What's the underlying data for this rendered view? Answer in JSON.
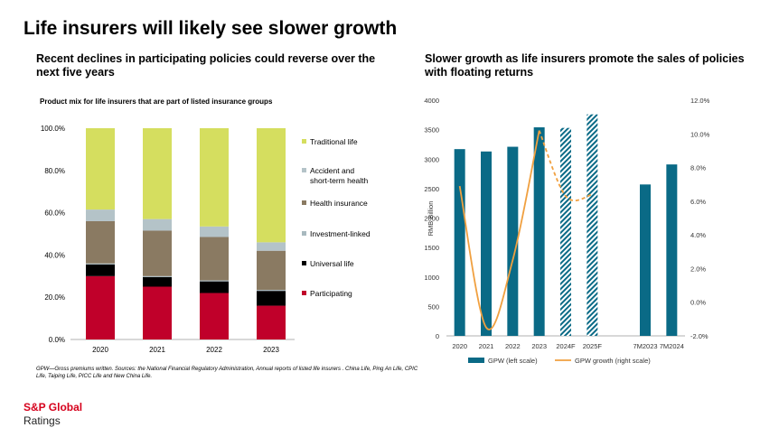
{
  "title": "Life insurers will likely see slower growth",
  "left_heading": "Recent declines in participating policies could reverse over the next five years",
  "right_heading": "Slower growth as life insurers promote the sales of policies with floating returns",
  "footnote": "GPW—Gross premiums written. Sources: the National Financial Regulatory Administration, Annual reports of listed life insurers . China Life, Ping An Life, CPIC Life, Taiping Life, PICC Life and New China Life.",
  "brand": {
    "line1": "S&P Global",
    "line2": "Ratings"
  },
  "colors": {
    "participating": "#c0002a",
    "universal": "#000000",
    "investment": "#a8b9bf",
    "health": "#8a7a62",
    "accident": "#b4c3c8",
    "traditional": "#d5de5f",
    "gpw": "#0a6a86",
    "growth": "#f0a040"
  },
  "chart_data": [
    {
      "type": "bar",
      "stacked": true,
      "title": "Product mix for life insurers that are part of listed insurance groups",
      "categories": [
        "2020",
        "2021",
        "2022",
        "2023"
      ],
      "series": [
        {
          "name": "Participating",
          "values": [
            30.0,
            25.0,
            22.0,
            16.0
          ]
        },
        {
          "name": "Universal life",
          "values": [
            5.5,
            4.5,
            5.5,
            7.0
          ]
        },
        {
          "name": "Investment-linked",
          "values": [
            0.5,
            0.5,
            0.5,
            0.5
          ]
        },
        {
          "name": "Health insurance",
          "values": [
            20.0,
            21.5,
            20.5,
            18.5
          ]
        },
        {
          "name": "Accident and short-term health",
          "values": [
            5.5,
            5.5,
            5.0,
            4.0
          ]
        },
        {
          "name": "Traditional life",
          "values": [
            38.5,
            43.0,
            46.5,
            54.0
          ]
        }
      ],
      "ylim": [
        0,
        100
      ],
      "yticks": [
        "0.0%",
        "20.0%",
        "40.0%",
        "60.0%",
        "80.0%",
        "100.0%"
      ],
      "legend_placement": "right",
      "legend_order": [
        "Traditional life",
        "Accident and short-term health",
        "Health insurance",
        "Investment-linked",
        "Universal life",
        "Participating"
      ]
    },
    {
      "type": "bar",
      "combo": "bar-line",
      "categories": [
        "2020",
        "2021",
        "2022",
        "2023",
        "2024F",
        "2025F",
        "",
        "7M2023",
        "7M2024"
      ],
      "series": [
        {
          "name": "GPW (left scale)",
          "type": "bar",
          "values": [
            3170,
            3130,
            3210,
            3540,
            3530,
            3760,
            null,
            2570,
            2910
          ],
          "forecast": [
            false,
            false,
            false,
            false,
            true,
            true,
            false,
            false,
            false
          ]
        },
        {
          "name": "GPW growth (right scale)",
          "type": "line",
          "values": [
            6.9,
            -1.5,
            2.5,
            10.2,
            6.3,
            6.4,
            null,
            null,
            null
          ],
          "forecast_from_index": 4
        }
      ],
      "ylabel": "RMB Billion",
      "ylim": [
        0,
        4000
      ],
      "yticks": [
        "0",
        "500",
        "1000",
        "1500",
        "2000",
        "2500",
        "3000",
        "3500",
        "4000"
      ],
      "y2lim": [
        -2,
        12
      ],
      "y2ticks": [
        "-2.0%",
        "0.0%",
        "2.0%",
        "4.0%",
        "6.0%",
        "8.0%",
        "10.0%",
        "12.0%"
      ],
      "legend_placement": "bottom"
    }
  ]
}
